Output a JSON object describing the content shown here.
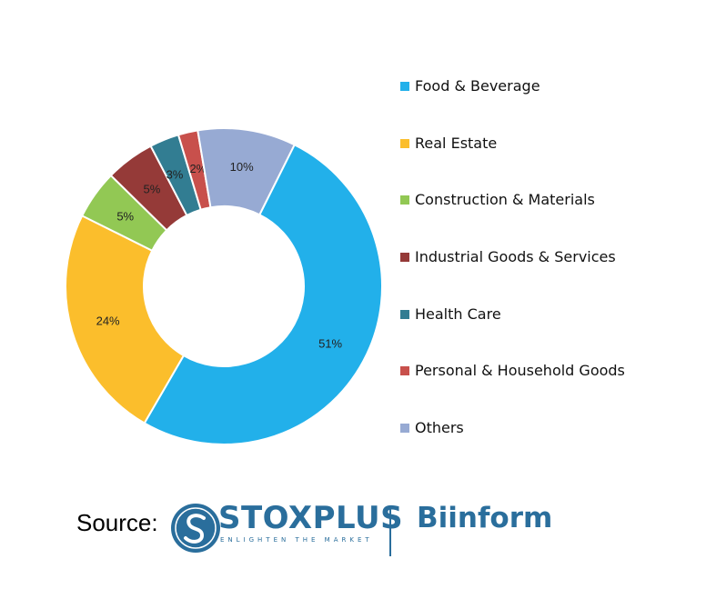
{
  "chart_data": {
    "type": "pie",
    "title": "",
    "legend_position": "right",
    "slices": [
      {
        "label": "Food & Beverage",
        "value": 51,
        "display": "51%",
        "color": "#22b0ea"
      },
      {
        "label": "Real Estate",
        "value": 24,
        "display": "24%",
        "color": "#fbbe2c"
      },
      {
        "label": "Construction & Materials",
        "value": 5,
        "display": "5%",
        "color": "#92c854"
      },
      {
        "label": "Industrial Goods & Services",
        "value": 5,
        "display": "5%",
        "color": "#953a38"
      },
      {
        "label": "Health Care",
        "value": 3,
        "display": "3%",
        "color": "#327d92"
      },
      {
        "label": "Personal & Household Goods",
        "value": 2,
        "display": "2%",
        "color": "#c8504c"
      },
      {
        "label": "Others",
        "value": 10,
        "display": "10%",
        "color": "#97aad3"
      }
    ]
  },
  "footer": {
    "source_label": "Source:",
    "stoxplus_name": "STOXPLUS",
    "stoxplus_tagline": "ENLIGHTEN THE MARKET",
    "biinform_name": "Biinform",
    "brand_color": "#2a6e9c"
  }
}
